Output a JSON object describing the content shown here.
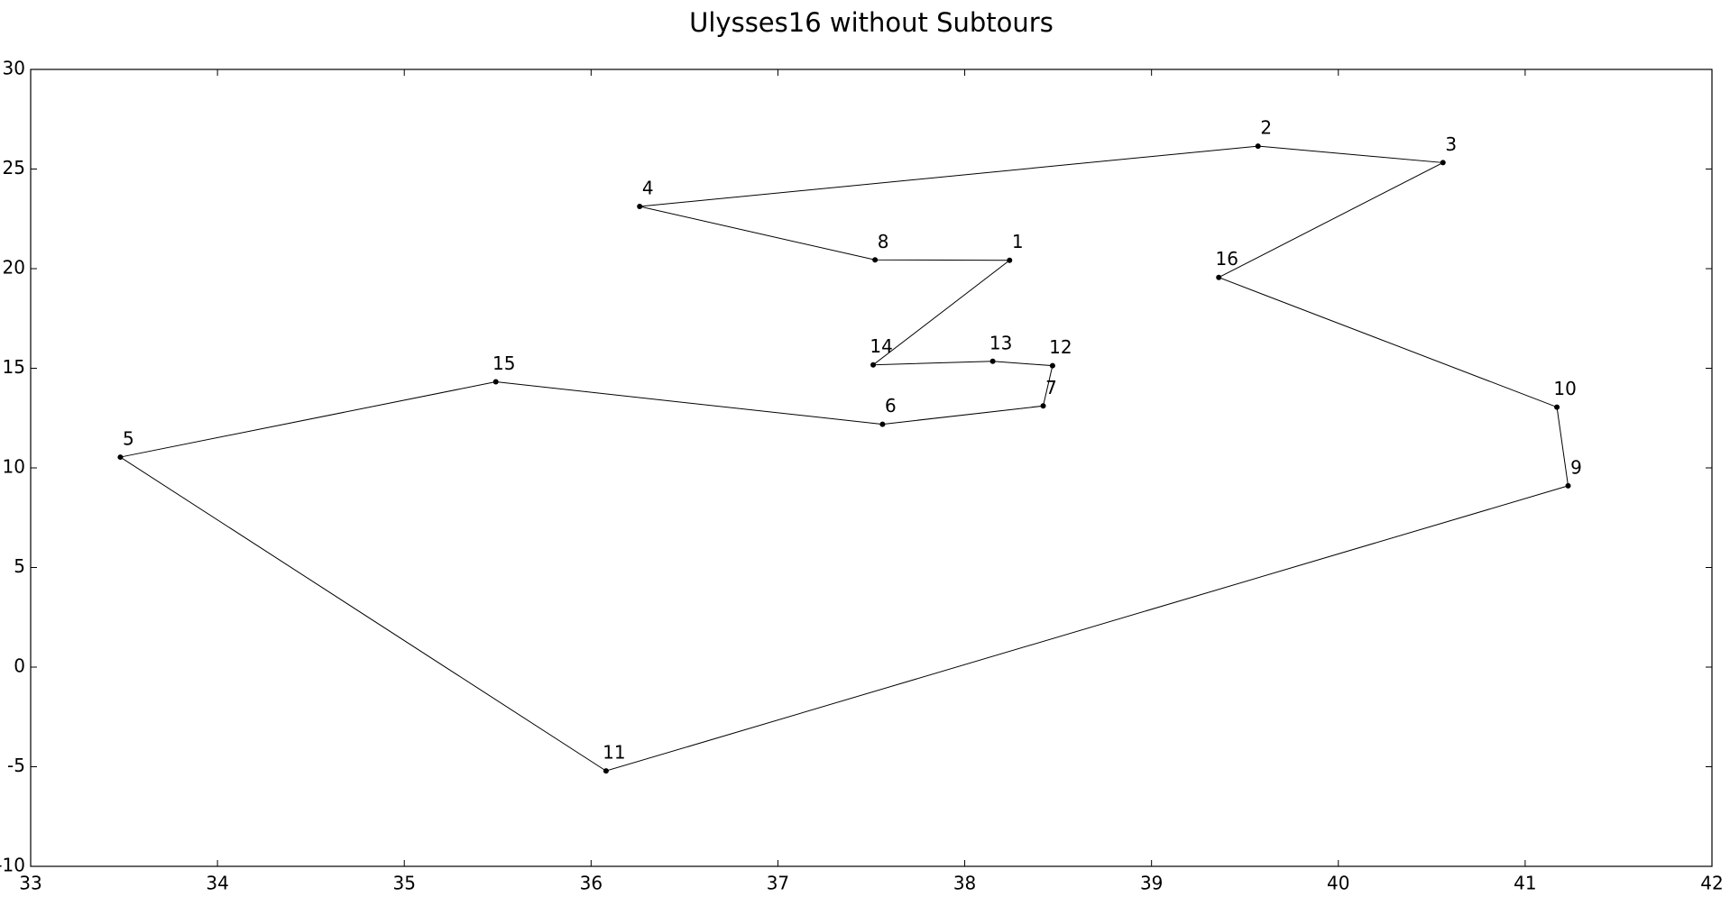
{
  "chart_data": {
    "type": "tour",
    "title": "Ulysses16 without Subtours",
    "labels": [
      "1",
      "8",
      "4",
      "2",
      "3",
      "16",
      "10",
      "9",
      "11",
      "5",
      "15",
      "6",
      "7",
      "12",
      "13",
      "14"
    ],
    "x": [
      38.24,
      37.52,
      36.26,
      39.57,
      40.56,
      39.36,
      41.17,
      41.23,
      36.08,
      33.48,
      35.49,
      37.56,
      38.42,
      38.47,
      38.15,
      37.51
    ],
    "y": [
      20.42,
      20.44,
      23.12,
      26.15,
      25.32,
      19.56,
      13.05,
      9.1,
      -5.21,
      10.54,
      14.32,
      12.19,
      13.11,
      15.13,
      15.35,
      15.17
    ],
    "closed": true,
    "color": "#000000",
    "xlim": [
      33,
      42
    ],
    "xticks": [
      33,
      34,
      35,
      36,
      37,
      38,
      39,
      40,
      41,
      42
    ],
    "ylim": [
      -10,
      30
    ],
    "yticks": [
      -10,
      -5,
      0,
      5,
      10,
      15,
      20,
      25,
      30
    ],
    "grid": false
  }
}
